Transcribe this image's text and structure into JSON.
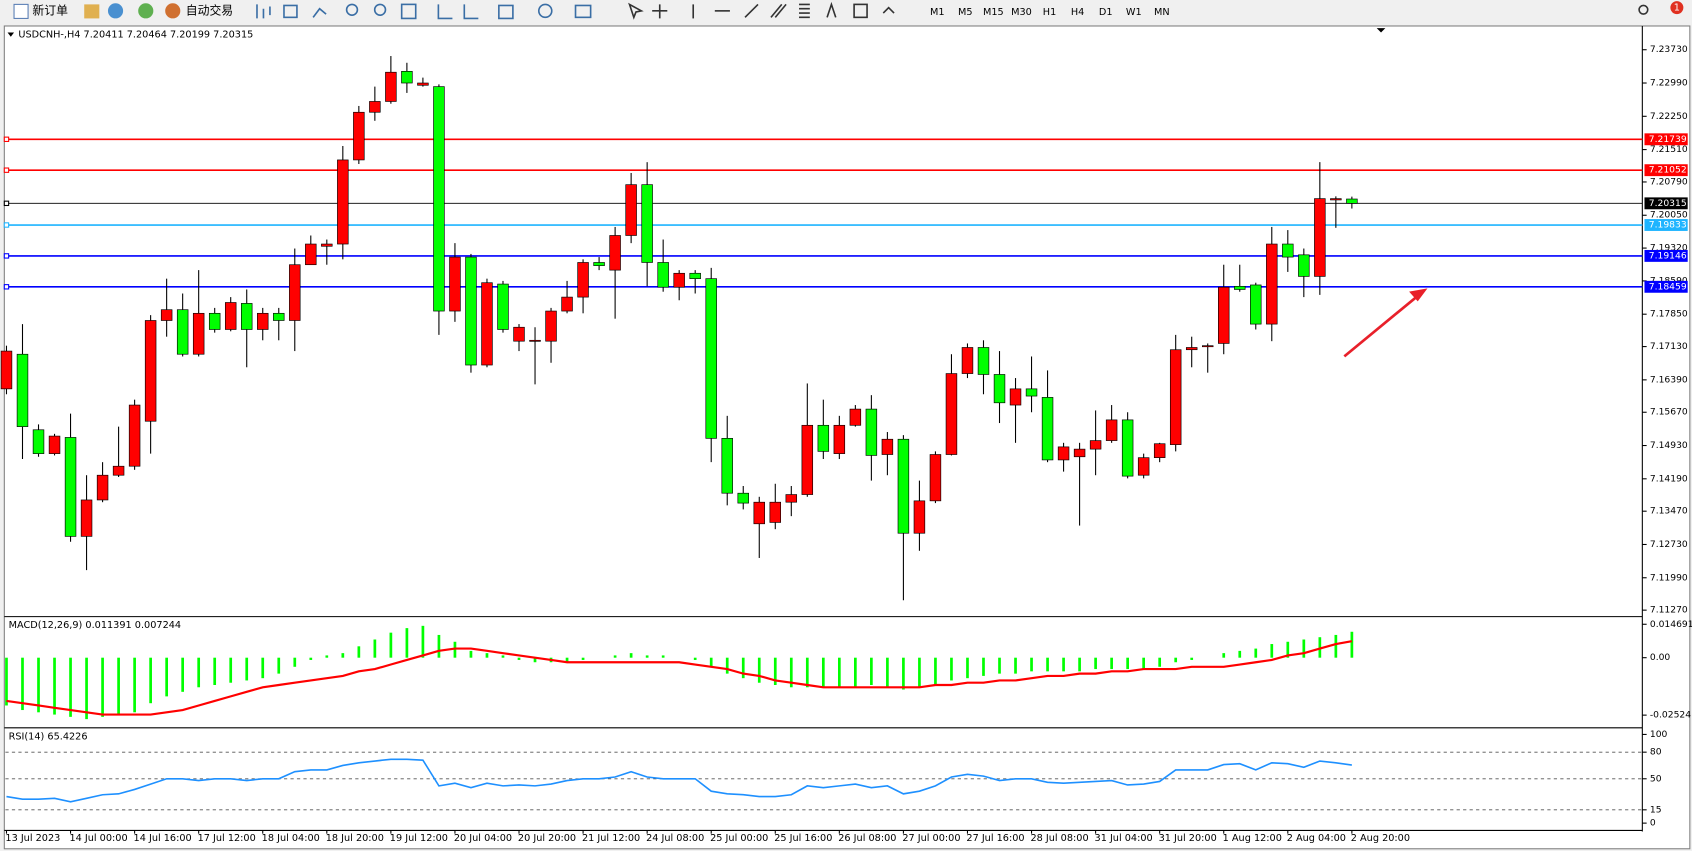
{
  "toolbar": {
    "new_order": "新订单",
    "auto_trading": "自动交易",
    "timeframes": [
      "M1",
      "M5",
      "M15",
      "M30",
      "H1",
      "H4",
      "D1",
      "W1",
      "MN"
    ],
    "notification_count": "1"
  },
  "chart_data": [
    {
      "type": "candlestick",
      "title": "USDCNH-,H4  7.20411 7.20464 7.20199 7.20315",
      "up_color": "#ff0000",
      "down_color": "#00ff00",
      "categories": [
        "13 Jul 2023",
        null,
        null,
        null,
        "14 Jul 00:00",
        null,
        null,
        null,
        "14 Jul 16:00",
        null,
        null,
        null,
        "17 Jul 12:00",
        null,
        null,
        null,
        "18 Jul 04:00",
        null,
        null,
        null,
        "18 Jul 20:00",
        null,
        null,
        null,
        "19 Jul 12:00",
        null,
        null,
        null,
        "20 Jul 04:00",
        null,
        null,
        null,
        "20 Jul 20:00",
        null,
        null,
        null,
        "21 Jul 12:00",
        null,
        null,
        null,
        "24 Jul 08:00",
        null,
        null,
        null,
        "25 Jul 00:00",
        null,
        null,
        null,
        "25 Jul 16:00",
        null,
        null,
        null,
        "26 Jul 08:00",
        null,
        null,
        null,
        "27 Jul 00:00",
        null,
        null,
        null,
        "27 Jul 16:00",
        null,
        null,
        null,
        "28 Jul 08:00",
        null,
        null,
        null,
        "31 Jul 04:00",
        null,
        null,
        null,
        "31 Jul 20:00",
        null,
        null,
        null,
        "1 Aug 12:00",
        null,
        null,
        null,
        "2 Aug 04:00",
        null,
        null,
        null,
        "2 Aug 20:00"
      ],
      "open": [
        7.1619,
        7.1696,
        7.1528,
        7.1475,
        7.1511,
        7.1291,
        7.1372,
        7.1427,
        7.1447,
        7.1547,
        7.1771,
        7.1795,
        7.1696,
        7.1787,
        7.1751,
        7.1809,
        7.1751,
        7.1787,
        7.1771,
        7.1895,
        7.1936,
        7.1941,
        7.2128,
        7.2234,
        7.2258,
        7.2325,
        7.2294,
        7.2291,
        7.1792,
        7.1912,
        7.1672,
        7.1852,
        7.1725,
        7.1725,
        7.1725,
        7.1792,
        7.1823,
        7.19,
        7.1883,
        7.196,
        7.2073,
        7.19,
        7.1845,
        7.1876,
        7.1864,
        7.1509,
        7.1387,
        7.1319,
        7.1322,
        7.1367,
        7.1384,
        7.1538,
        7.1475,
        7.1538,
        7.1574,
        7.1473,
        7.1507,
        7.1298,
        7.137,
        7.1473,
        7.1653,
        7.1711,
        7.1651,
        7.1583,
        7.1619,
        7.16,
        7.1461,
        7.1468,
        7.1485,
        7.1504,
        7.155,
        7.1427,
        7.1466,
        7.1495,
        7.1706,
        7.1713,
        7.172,
        7.1847,
        7.185,
        7.1763,
        7.1941,
        7.1917,
        7.1869,
        7.2039,
        7.20411
      ],
      "high": [
        7.1715,
        7.1763,
        7.154,
        7.1519,
        7.1564,
        7.1427,
        7.1456,
        7.1535,
        7.1595,
        7.1783,
        7.1864,
        7.1831,
        7.1883,
        7.1799,
        7.1823,
        7.184,
        7.1799,
        7.1799,
        7.1931,
        7.196,
        7.1951,
        7.2159,
        7.2248,
        7.2291,
        7.2359,
        7.2344,
        7.2311,
        7.2296,
        7.1943,
        7.1919,
        7.1864,
        7.1859,
        7.1763,
        7.1756,
        7.1799,
        7.1859,
        7.1907,
        7.1912,
        7.1979,
        7.2099,
        7.2123,
        7.1951,
        7.1883,
        7.1883,
        7.1888,
        7.1559,
        7.1403,
        7.1379,
        7.1408,
        7.1403,
        7.1631,
        7.1595,
        7.1559,
        7.1583,
        7.1605,
        7.1523,
        7.1516,
        7.1415,
        7.148,
        7.1696,
        7.172,
        7.1727,
        7.1703,
        7.1643,
        7.1691,
        7.166,
        7.1499,
        7.1499,
        7.1571,
        7.1583,
        7.1567,
        7.1475,
        7.1499,
        7.1739,
        7.1735,
        7.172,
        7.1895,
        7.1895,
        7.1855,
        7.1979,
        7.1972,
        7.1931,
        7.2123,
        7.2047,
        7.20464
      ],
      "low": [
        7.1607,
        7.1463,
        7.1468,
        7.1471,
        7.1279,
        7.1216,
        7.1367,
        7.1423,
        7.1439,
        7.1475,
        7.1735,
        7.1691,
        7.1691,
        7.1744,
        7.1747,
        7.1667,
        7.1727,
        7.1727,
        7.1703,
        7.1895,
        7.1895,
        7.1907,
        7.2119,
        7.2215,
        7.2253,
        7.2277,
        7.2291,
        7.1739,
        7.1768,
        7.1655,
        7.1667,
        7.1744,
        7.1703,
        7.1629,
        7.1677,
        7.1787,
        7.1787,
        7.1883,
        7.1775,
        7.1943,
        7.1847,
        7.1835,
        7.1816,
        7.1831,
        7.1456,
        7.136,
        7.1351,
        7.1243,
        7.1307,
        7.1336,
        7.1379,
        7.1463,
        7.1463,
        7.1535,
        7.1415,
        7.1427,
        7.1149,
        7.1259,
        7.1365,
        7.1471,
        7.1643,
        7.1607,
        7.1543,
        7.1499,
        7.1567,
        7.1456,
        7.1435,
        7.1315,
        7.1427,
        7.1499,
        7.142,
        7.142,
        7.1456,
        7.148,
        7.1667,
        7.1655,
        7.1696,
        7.1835,
        7.1751,
        7.1725,
        7.1879,
        7.1823,
        7.1828,
        7.1977,
        7.20199
      ],
      "close": [
        7.1703,
        7.1535,
        7.1475,
        7.1514,
        7.1291,
        7.1372,
        7.1427,
        7.1447,
        7.1583,
        7.1771,
        7.1795,
        7.1696,
        7.1787,
        7.1751,
        7.1811,
        7.1751,
        7.1787,
        7.1771,
        7.1895,
        7.1941,
        7.1941,
        7.2128,
        7.2234,
        7.2258,
        7.2323,
        7.2299,
        7.2299,
        7.1792,
        7.1912,
        7.1672,
        7.1855,
        7.1751,
        7.1756,
        7.1727,
        7.1792,
        7.1823,
        7.19,
        7.1893,
        7.196,
        7.2073,
        7.19,
        7.1845,
        7.1876,
        7.1864,
        7.1509,
        7.1387,
        7.1365,
        7.1367,
        7.1367,
        7.1384,
        7.1538,
        7.148,
        7.1538,
        7.1574,
        7.1471,
        7.1507,
        7.1298,
        7.137,
        7.1473,
        7.1653,
        7.1711,
        7.1651,
        7.1588,
        7.1619,
        7.1603,
        7.1461,
        7.149,
        7.1485,
        7.1504,
        7.155,
        7.1425,
        7.1466,
        7.1497,
        7.1706,
        7.1711,
        7.1715,
        7.1845,
        7.184,
        7.1763,
        7.1941,
        7.1912,
        7.1869,
        7.2042,
        7.2042,
        7.20315
      ],
      "ylim": [
        7.1115,
        7.2421
      ],
      "yticks": [
        {
          "value": 7.2373,
          "label": "7.23730"
        },
        {
          "value": 7.2299,
          "label": "7.22990"
        },
        {
          "value": 7.2225,
          "label": "7.22250"
        },
        {
          "value": 7.2151,
          "label": "7.21510"
        },
        {
          "value": 7.2079,
          "label": "7.20790"
        },
        {
          "value": 7.2005,
          "label": "7.20050"
        },
        {
          "value": 7.1932,
          "label": "7.19320"
        },
        {
          "value": 7.1859,
          "label": "7.18590"
        },
        {
          "value": 7.1785,
          "label": "7.17850"
        },
        {
          "value": 7.1713,
          "label": "7.17130"
        },
        {
          "value": 7.1639,
          "label": "7.16390"
        },
        {
          "value": 7.1567,
          "label": "7.15670"
        },
        {
          "value": 7.1493,
          "label": "7.14930"
        },
        {
          "value": 7.1419,
          "label": "7.14190"
        },
        {
          "value": 7.1347,
          "label": "7.13470"
        },
        {
          "value": 7.1273,
          "label": "7.12730"
        },
        {
          "value": 7.1199,
          "label": "7.11990"
        },
        {
          "value": 7.1127,
          "label": "7.11270"
        }
      ],
      "hlines": [
        {
          "value": 7.21739,
          "color": "#ff0000"
        },
        {
          "value": 7.21052,
          "color": "#ff0000"
        },
        {
          "value": 7.20315,
          "color": "#000000"
        },
        {
          "value": 7.19833,
          "color": "#1eb4ff"
        },
        {
          "value": 7.19146,
          "color": "#0000ff"
        },
        {
          "value": 7.18459,
          "color": "#0000ff"
        }
      ]
    },
    {
      "type": "macd",
      "title": "MACD(12,26,9) 0.011391 0.007244",
      "color": "#00ff00",
      "signal_color": "#ff0000",
      "values": [
        -0.021,
        -0.023,
        -0.024,
        -0.025,
        -0.026,
        -0.027,
        -0.026,
        -0.025,
        -0.024,
        -0.02,
        -0.017,
        -0.015,
        -0.013,
        -0.012,
        -0.011,
        -0.01,
        -0.009,
        -0.007,
        -0.004,
        -0.001,
        0.001,
        0.002,
        0.005,
        0.008,
        0.011,
        0.013,
        0.014,
        0.01,
        0.007,
        0.003,
        0.002,
        0.001,
        -0.001,
        -0.002,
        -0.002,
        -0.002,
        -0.001,
        0,
        0.001,
        0.002,
        0.001,
        0.001,
        0,
        -0.001,
        -0.004,
        -0.007,
        -0.009,
        -0.011,
        -0.012,
        -0.013,
        -0.013,
        -0.013,
        -0.013,
        -0.013,
        -0.012,
        -0.013,
        -0.014,
        -0.013,
        -0.012,
        -0.01,
        -0.009,
        -0.008,
        -0.007,
        -0.007,
        -0.006,
        -0.006,
        -0.006,
        -0.006,
        -0.005,
        -0.005,
        -0.005,
        -0.005,
        -0.004,
        -0.002,
        -0.001,
        0,
        0.002,
        0.003,
        0.004,
        0.006,
        0.007,
        0.008,
        0.009,
        0.01,
        0.011391
      ],
      "signal": [
        -0.019,
        -0.02,
        -0.021,
        -0.022,
        -0.023,
        -0.024,
        -0.025,
        -0.025,
        -0.025,
        -0.025,
        -0.024,
        -0.023,
        -0.021,
        -0.019,
        -0.017,
        -0.015,
        -0.013,
        -0.012,
        -0.011,
        -0.01,
        -0.009,
        -0.008,
        -0.006,
        -0.005,
        -0.003,
        -0.001,
        0.001,
        0.003,
        0.004,
        0.004,
        0.003,
        0.002,
        0.001,
        0,
        -0.001,
        -0.002,
        -0.002,
        -0.002,
        -0.002,
        -0.002,
        -0.002,
        -0.002,
        -0.002,
        -0.003,
        -0.004,
        -0.005,
        -0.007,
        -0.008,
        -0.01,
        -0.011,
        -0.012,
        -0.013,
        -0.013,
        -0.013,
        -0.013,
        -0.013,
        -0.013,
        -0.013,
        -0.012,
        -0.012,
        -0.011,
        -0.011,
        -0.01,
        -0.01,
        -0.009,
        -0.008,
        -0.008,
        -0.007,
        -0.007,
        -0.006,
        -0.006,
        -0.005,
        -0.005,
        -0.005,
        -0.004,
        -0.004,
        -0.004,
        -0.003,
        -0.002,
        -0.001,
        0.001,
        0.002,
        0.004,
        0.006,
        0.007244
      ],
      "ylim": [
        -0.0294,
        0.0171
      ],
      "yticks": [
        0.014691,
        {
          "value": 0,
          "label": "0.00"
        },
        -0.02524
      ]
    },
    {
      "type": "line",
      "title": "RSI(14) 65.4226",
      "color": "#1e90ff",
      "values": [
        30,
        27,
        27,
        28,
        24,
        28,
        32,
        33,
        38,
        44,
        50,
        50,
        48,
        50,
        50,
        48,
        50,
        50,
        58,
        60,
        60,
        65,
        68,
        70,
        72,
        72,
        71,
        42,
        45,
        40,
        45,
        42,
        43,
        42,
        44,
        48,
        50,
        50,
        52,
        58,
        52,
        50,
        50,
        50,
        36,
        33,
        32,
        30,
        30,
        32,
        42,
        40,
        42,
        44,
        40,
        42,
        33,
        36,
        42,
        52,
        55,
        53,
        48,
        50,
        50,
        46,
        45,
        46,
        47,
        48,
        43,
        44,
        47,
        60,
        60,
        60,
        66,
        67,
        60,
        68,
        67,
        63,
        70,
        68,
        65.4226
      ],
      "ylim": [
        -7,
        105
      ],
      "yticks": [
        100,
        80,
        50,
        15,
        0
      ],
      "dashed_levels": [
        80,
        50,
        15
      ]
    }
  ]
}
